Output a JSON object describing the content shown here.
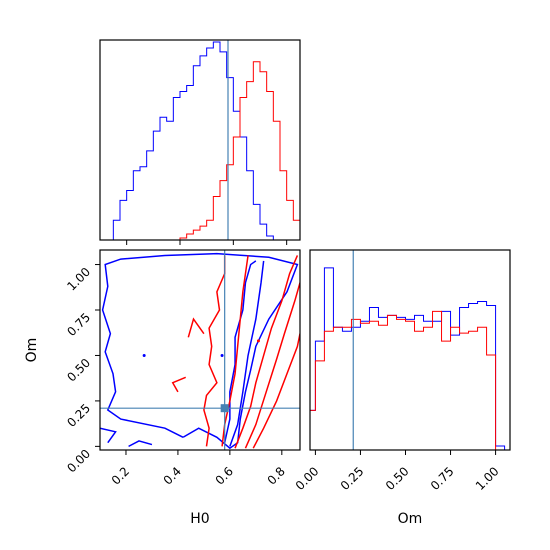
{
  "chart_data": {
    "type": "corner",
    "params": [
      "H0",
      "Om"
    ],
    "xlabel": "H0",
    "ylabel": "Om",
    "om_xlabel": "Om",
    "truth": {
      "H0": 0.58,
      "Om": 0.21
    },
    "colors": {
      "blue": "#0000ff",
      "red": "#ff0000",
      "truth": "#4682b4"
    },
    "panels": [
      {
        "name": "H0 marginal",
        "type": "step-histogram",
        "xlim": [
          0.1,
          0.85
        ],
        "x_ticks": [
          0.2,
          0.4,
          0.6,
          0.8
        ],
        "bin_edges": [
          0.1,
          0.125,
          0.15,
          0.175,
          0.2,
          0.225,
          0.25,
          0.275,
          0.3,
          0.325,
          0.35,
          0.375,
          0.4,
          0.425,
          0.45,
          0.475,
          0.5,
          0.525,
          0.55,
          0.575,
          0.6,
          0.625,
          0.65,
          0.675,
          0.7,
          0.725,
          0.75,
          0.775,
          0.8,
          0.825,
          0.85
        ],
        "series": [
          {
            "color": "blue",
            "values": [
              0,
              0,
              0.1,
              0.2,
              0.25,
              0.35,
              0.37,
              0.45,
              0.55,
              0.62,
              0.6,
              0.72,
              0.75,
              0.78,
              0.88,
              0.93,
              0.97,
              1.0,
              0.95,
              0.82,
              0.65,
              0.52,
              0.35,
              0.18,
              0.08,
              0.02,
              0,
              0,
              0,
              0
            ]
          },
          {
            "color": "red",
            "values": [
              0,
              0,
              0,
              0,
              0,
              0,
              0,
              0,
              0,
              0,
              0,
              0,
              0.01,
              0.03,
              0.05,
              0.07,
              0.1,
              0.22,
              0.3,
              0.38,
              0.52,
              0.72,
              0.8,
              0.9,
              0.85,
              0.75,
              0.6,
              0.35,
              0.2,
              0.1
            ]
          }
        ]
      },
      {
        "name": "Om marginal",
        "type": "step-histogram",
        "xlim": [
          -0.03,
          1.08
        ],
        "x_ticks": [
          0.0,
          0.25,
          0.5,
          0.75,
          1.0
        ],
        "x_tick_labels": [
          "0.00",
          "0.25",
          "0.50",
          "0.75",
          "1.00"
        ],
        "bin_edges": [
          -0.03,
          0.0,
          0.05,
          0.1,
          0.15,
          0.2,
          0.25,
          0.3,
          0.35,
          0.4,
          0.45,
          0.5,
          0.55,
          0.6,
          0.65,
          0.7,
          0.75,
          0.8,
          0.85,
          0.9,
          0.95,
          1.0,
          1.05,
          1.08
        ],
        "series": [
          {
            "color": "blue",
            "values": [
              0.2,
              0.55,
              0.92,
              0.62,
              0.6,
              0.62,
              0.65,
              0.72,
              0.67,
              0.68,
              0.67,
              0.66,
              0.68,
              0.65,
              0.65,
              0.7,
              0.58,
              0.72,
              0.74,
              0.75,
              0.73,
              0.02,
              0.0
            ]
          },
          {
            "color": "red",
            "values": [
              0.2,
              0.45,
              0.6,
              0.62,
              0.62,
              0.66,
              0.64,
              0.65,
              0.63,
              0.68,
              0.66,
              0.65,
              0.6,
              0.62,
              0.7,
              0.55,
              0.62,
              0.59,
              0.6,
              0.62,
              0.48,
              0.0,
              0.0
            ]
          }
        ]
      },
      {
        "name": "H0-Om joint",
        "type": "contour",
        "xlim": [
          0.1,
          0.87
        ],
        "ylim": [
          -0.02,
          1.08
        ],
        "x_ticks": [
          0.2,
          0.4,
          0.6,
          0.8
        ],
        "y_ticks": [
          0.0,
          0.25,
          0.5,
          0.75,
          1.0
        ],
        "y_tick_labels": [
          "0.00",
          "0.25",
          "0.50",
          "0.75",
          "1.00"
        ]
      }
    ],
    "contours": [
      {
        "color": "blue",
        "points": [
          [
            0.42,
            0.05
          ],
          [
            0.35,
            0.1
          ],
          [
            0.18,
            0.15
          ],
          [
            0.13,
            0.2
          ],
          [
            0.16,
            0.3
          ],
          [
            0.15,
            0.4
          ],
          [
            0.12,
            0.52
          ],
          [
            0.14,
            0.62
          ],
          [
            0.11,
            0.75
          ],
          [
            0.13,
            0.88
          ],
          [
            0.12,
            1.0
          ],
          [
            0.18,
            1.03
          ],
          [
            0.35,
            1.05
          ],
          [
            0.55,
            1.06
          ],
          [
            0.75,
            1.04
          ],
          [
            0.86,
            1.0
          ],
          [
            0.82,
            0.85
          ],
          [
            0.75,
            0.7
          ],
          [
            0.7,
            0.55
          ],
          [
            0.68,
            0.42
          ],
          [
            0.66,
            0.3
          ],
          [
            0.64,
            0.15
          ],
          [
            0.63,
            0.02
          ],
          [
            0.6,
            -0.01
          ],
          [
            0.55,
            0.05
          ],
          [
            0.48,
            0.1
          ],
          [
            0.42,
            0.05
          ]
        ]
      },
      {
        "color": "blue",
        "points": [
          [
            0.58,
            0.02
          ],
          [
            0.6,
            0.15
          ],
          [
            0.6,
            0.3
          ],
          [
            0.62,
            0.45
          ],
          [
            0.62,
            0.6
          ],
          [
            0.65,
            0.75
          ],
          [
            0.66,
            0.9
          ],
          [
            0.68,
            1.0
          ],
          [
            0.7,
            1.02
          ]
        ]
      },
      {
        "color": "blue",
        "points": [
          [
            0.6,
            0.0
          ],
          [
            0.63,
            0.12
          ],
          [
            0.65,
            0.3
          ],
          [
            0.67,
            0.5
          ],
          [
            0.7,
            0.7
          ],
          [
            0.72,
            0.9
          ],
          [
            0.73,
            1.02
          ]
        ]
      },
      {
        "color": "blue",
        "points": [
          [
            0.21,
            0.0
          ],
          [
            0.25,
            0.03
          ],
          [
            0.3,
            0.01
          ]
        ]
      },
      {
        "color": "blue",
        "points": [
          [
            0.1,
            0.1
          ],
          [
            0.16,
            0.08
          ],
          [
            0.13,
            0.02
          ]
        ]
      },
      {
        "color": "red",
        "points": [
          [
            0.51,
            0.0
          ],
          [
            0.52,
            0.1
          ],
          [
            0.5,
            0.2
          ],
          [
            0.51,
            0.28
          ],
          [
            0.55,
            0.35
          ],
          [
            0.52,
            0.45
          ],
          [
            0.53,
            0.55
          ],
          [
            0.52,
            0.65
          ],
          [
            0.56,
            0.75
          ],
          [
            0.55,
            0.85
          ],
          [
            0.58,
            0.95
          ],
          [
            0.58,
            1.05
          ]
        ]
      },
      {
        "color": "red",
        "points": [
          [
            0.57,
            0.0
          ],
          [
            0.58,
            0.12
          ],
          [
            0.6,
            0.25
          ],
          [
            0.62,
            0.4
          ],
          [
            0.63,
            0.55
          ],
          [
            0.64,
            0.7
          ],
          [
            0.65,
            0.85
          ],
          [
            0.67,
            1.05
          ]
        ]
      },
      {
        "color": "red",
        "points": [
          [
            0.62,
            -0.01
          ],
          [
            0.65,
            0.1
          ],
          [
            0.68,
            0.22
          ],
          [
            0.7,
            0.35
          ],
          [
            0.73,
            0.5
          ],
          [
            0.76,
            0.65
          ],
          [
            0.8,
            0.8
          ],
          [
            0.83,
            0.95
          ],
          [
            0.86,
            1.05
          ]
        ]
      },
      {
        "color": "red",
        "points": [
          [
            0.66,
            -0.01
          ],
          [
            0.7,
            0.12
          ],
          [
            0.74,
            0.3
          ],
          [
            0.78,
            0.48
          ],
          [
            0.81,
            0.62
          ],
          [
            0.85,
            0.8
          ],
          [
            0.87,
            0.9
          ]
        ]
      },
      {
        "color": "red",
        "points": [
          [
            0.69,
            -0.01
          ],
          [
            0.73,
            0.1
          ],
          [
            0.78,
            0.25
          ],
          [
            0.82,
            0.4
          ],
          [
            0.86,
            0.55
          ],
          [
            0.87,
            0.62
          ]
        ]
      },
      {
        "color": "red",
        "points": [
          [
            0.4,
            0.3
          ],
          [
            0.38,
            0.35
          ],
          [
            0.43,
            0.38
          ]
        ]
      },
      {
        "color": "red",
        "points": [
          [
            0.44,
            0.6
          ],
          [
            0.46,
            0.7
          ],
          [
            0.5,
            0.62
          ]
        ]
      }
    ]
  }
}
